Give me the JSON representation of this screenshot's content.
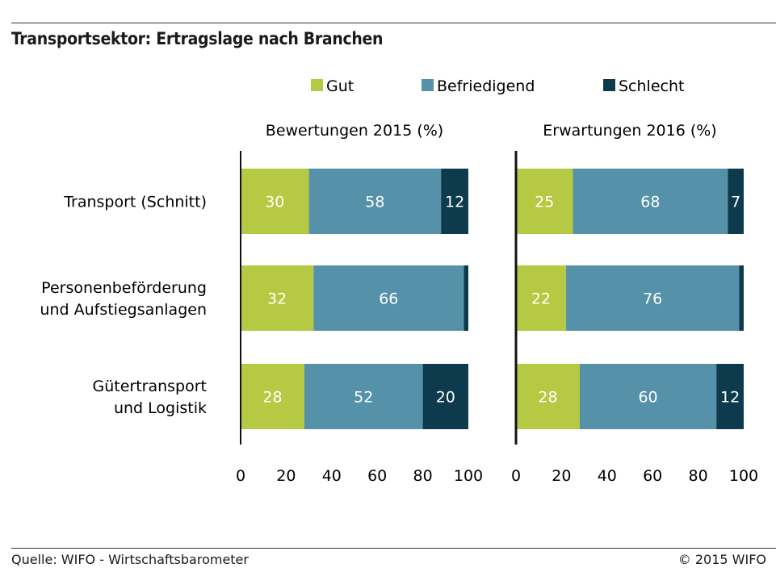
{
  "title": "Transportsektor: Ertragslage nach Branchen",
  "source": "Quelle: WIFO - Wirtschaftsbarometer",
  "copyright": "© 2015 WIFO",
  "chart_data": {
    "type": "bar",
    "orientation": "horizontal",
    "stacked": true,
    "categories": [
      [
        "Transport (Schnitt)"
      ],
      [
        "Personenbeförderung",
        "und Aufstiegsanlagen"
      ],
      [
        "Gütertransport",
        "und Logistik"
      ]
    ],
    "legend": [
      {
        "name": "Gut",
        "color": "#b5c942"
      },
      {
        "name": "Befriedigend",
        "color": "#5592aa"
      },
      {
        "name": "Schlecht",
        "color": "#0e3a4e"
      }
    ],
    "legend_position": "top",
    "xlim": [
      0,
      100
    ],
    "xticks": [
      0,
      20,
      40,
      60,
      80,
      100
    ],
    "grid": false,
    "panels": [
      {
        "title": "Bewertungen 2015 (%)",
        "series": [
          {
            "name": "Gut",
            "values": [
              30,
              32,
              28
            ]
          },
          {
            "name": "Befriedigend",
            "values": [
              58,
              66,
              52
            ]
          },
          {
            "name": "Schlecht",
            "values": [
              12,
              2,
              20
            ]
          }
        ],
        "labels": [
          [
            "30",
            "58",
            "12"
          ],
          [
            "32",
            "66",
            ""
          ],
          [
            "28",
            "52",
            "20"
          ]
        ]
      },
      {
        "title": "Erwartungen 2016 (%)",
        "series": [
          {
            "name": "Gut",
            "values": [
              25,
              22,
              28
            ]
          },
          {
            "name": "Befriedigend",
            "values": [
              68,
              76,
              60
            ]
          },
          {
            "name": "Schlecht",
            "values": [
              7,
              2,
              12
            ]
          }
        ],
        "labels": [
          [
            "25",
            "68",
            "7"
          ],
          [
            "22",
            "76",
            ""
          ],
          [
            "28",
            "60",
            "12"
          ]
        ]
      }
    ]
  }
}
